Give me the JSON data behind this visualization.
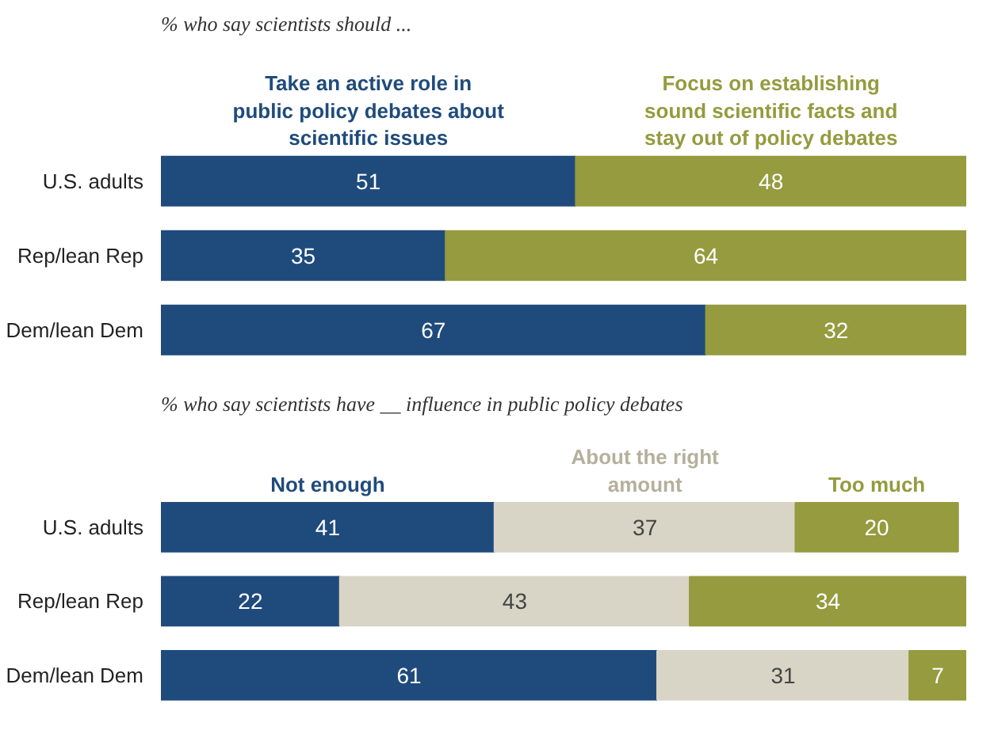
{
  "chart_data": [
    {
      "type": "bar",
      "orientation": "horizontal",
      "stacked": true,
      "data_labels": true,
      "legend": false,
      "grid": false,
      "title": "% who say scientists should ...",
      "categories": [
        "U.S. adults",
        "Rep/lean Rep",
        "Dem/lean Dem"
      ],
      "series": [
        {
          "name": "Take an active role in public policy debates about scientific issues",
          "color": "#1f4b7c",
          "values": [
            51,
            35,
            67
          ]
        },
        {
          "name": "Focus on establishing sound scientific facts and stay out of policy debates",
          "color": "#959b3e",
          "values": [
            48,
            64,
            32
          ]
        }
      ]
    },
    {
      "type": "bar",
      "orientation": "horizontal",
      "stacked": true,
      "data_labels": true,
      "legend": false,
      "grid": false,
      "title": "% who say scientists have __ influence in public policy debates",
      "categories": [
        "U.S. adults",
        "Rep/lean Rep",
        "Dem/lean Dem"
      ],
      "series": [
        {
          "name": "Not enough",
          "color": "#1f4b7c",
          "values": [
            41,
            22,
            61
          ]
        },
        {
          "name": "About the right amount",
          "color": "#d8d5c6",
          "values": [
            37,
            43,
            31
          ]
        },
        {
          "name": "Too much",
          "color": "#959b3e",
          "values": [
            20,
            34,
            7
          ]
        }
      ]
    }
  ]
}
